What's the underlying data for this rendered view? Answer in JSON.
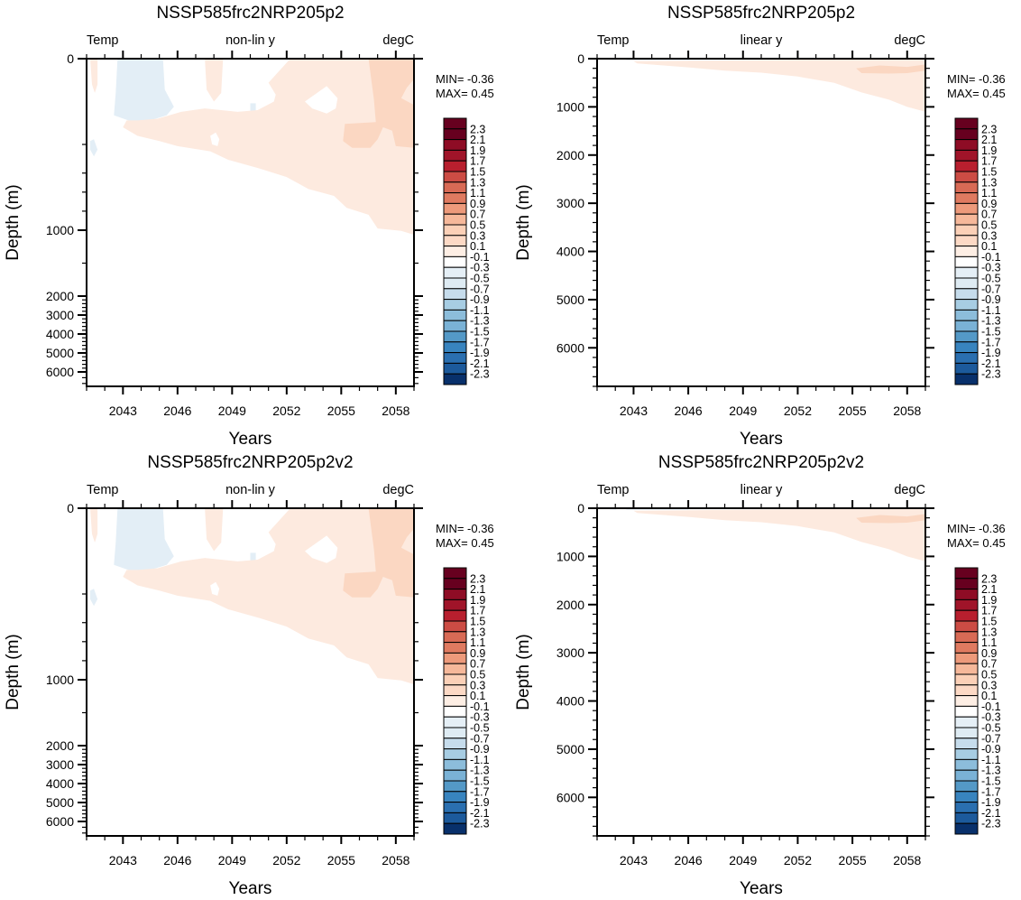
{
  "chart_data": [
    {
      "type": "heatmap",
      "title": "NSSP585frc2NRP205p2",
      "left_label": "Temp",
      "center_label": "non-lin y",
      "right_label": "degC",
      "xlabel": "Years",
      "ylabel": "Depth (m)",
      "y_scale": "non-linear",
      "xlim": [
        2041,
        2059
      ],
      "ylim": [
        0,
        6500
      ],
      "x_ticks": [
        "2043",
        "2046",
        "2049",
        "2052",
        "2055",
        "2058"
      ],
      "y_ticks": [
        "0",
        "1000",
        "2000",
        "3000",
        "4000",
        "5000",
        "6000"
      ],
      "min_label": "MIN= -0.36",
      "max_label": "MAX=  0.45",
      "variant": "p2-nonlin"
    },
    {
      "type": "heatmap",
      "title": "NSSP585frc2NRP205p2",
      "left_label": "Temp",
      "center_label": "linear y",
      "right_label": "degC",
      "xlabel": "Years",
      "ylabel": "Depth (m)",
      "y_scale": "linear",
      "xlim": [
        2041,
        2059
      ],
      "ylim": [
        0,
        6800
      ],
      "x_ticks": [
        "2043",
        "2046",
        "2049",
        "2052",
        "2055",
        "2058"
      ],
      "y_ticks": [
        "0",
        "1000",
        "2000",
        "3000",
        "4000",
        "5000",
        "6000"
      ],
      "min_label": "MIN= -0.36",
      "max_label": "MAX=  0.45",
      "variant": "p2-lin"
    },
    {
      "type": "heatmap",
      "title": "NSSP585frc2NRP205p2v2",
      "left_label": "Temp",
      "center_label": "non-lin y",
      "right_label": "degC",
      "xlabel": "Years",
      "ylabel": "Depth (m)",
      "y_scale": "non-linear",
      "xlim": [
        2041,
        2059
      ],
      "ylim": [
        0,
        6500
      ],
      "x_ticks": [
        "2043",
        "2046",
        "2049",
        "2052",
        "2055",
        "2058"
      ],
      "y_ticks": [
        "0",
        "1000",
        "2000",
        "3000",
        "4000",
        "5000",
        "6000"
      ],
      "min_label": "MIN= -0.36",
      "max_label": "MAX=  0.45",
      "variant": "p2v2-nonlin"
    },
    {
      "type": "heatmap",
      "title": "NSSP585frc2NRP205p2v2",
      "left_label": "Temp",
      "center_label": "linear y",
      "right_label": "degC",
      "xlabel": "Years",
      "ylabel": "Depth (m)",
      "y_scale": "linear",
      "xlim": [
        2041,
        2059
      ],
      "ylim": [
        0,
        6800
      ],
      "x_ticks": [
        "2043",
        "2046",
        "2049",
        "2052",
        "2055",
        "2058"
      ],
      "y_ticks": [
        "0",
        "1000",
        "2000",
        "3000",
        "4000",
        "5000",
        "6000"
      ],
      "min_label": "MIN= -0.36",
      "max_label": "MAX=  0.45",
      "variant": "p2v2-lin"
    }
  ],
  "colorbar": {
    "labels": [
      "2.3",
      "2.1",
      "1.9",
      "1.7",
      "1.5",
      "1.3",
      "1.1",
      "0.9",
      "0.7",
      "0.5",
      "0.3",
      "0.1",
      "-0.1",
      "-0.3",
      "-0.5",
      "-0.7",
      "-0.9",
      "-1.1",
      "-1.3",
      "-1.5",
      "-1.7",
      "-1.9",
      "-2.1",
      "-2.3"
    ],
    "colors": [
      "#67001f",
      "#8e0c25",
      "#a01429",
      "#b81f2e",
      "#cc4c44",
      "#d86a55",
      "#df7a60",
      "#ed9a7b",
      "#f6b89a",
      "#fbd0b7",
      "#fcd9c5",
      "#fdeee4",
      "#ffffff",
      "#e5eff6",
      "#deebf3",
      "#c6dcec",
      "#a7cde3",
      "#8cbddb",
      "#7ab2d6",
      "#5499c7",
      "#3884bf",
      "#2a6fb0",
      "#1c5a9c",
      "#08306b"
    ]
  },
  "fill_colors": {
    "light_orange": "#fdeadf",
    "mid_orange": "#fbd7c2",
    "light_blue": "#e3eef6"
  }
}
